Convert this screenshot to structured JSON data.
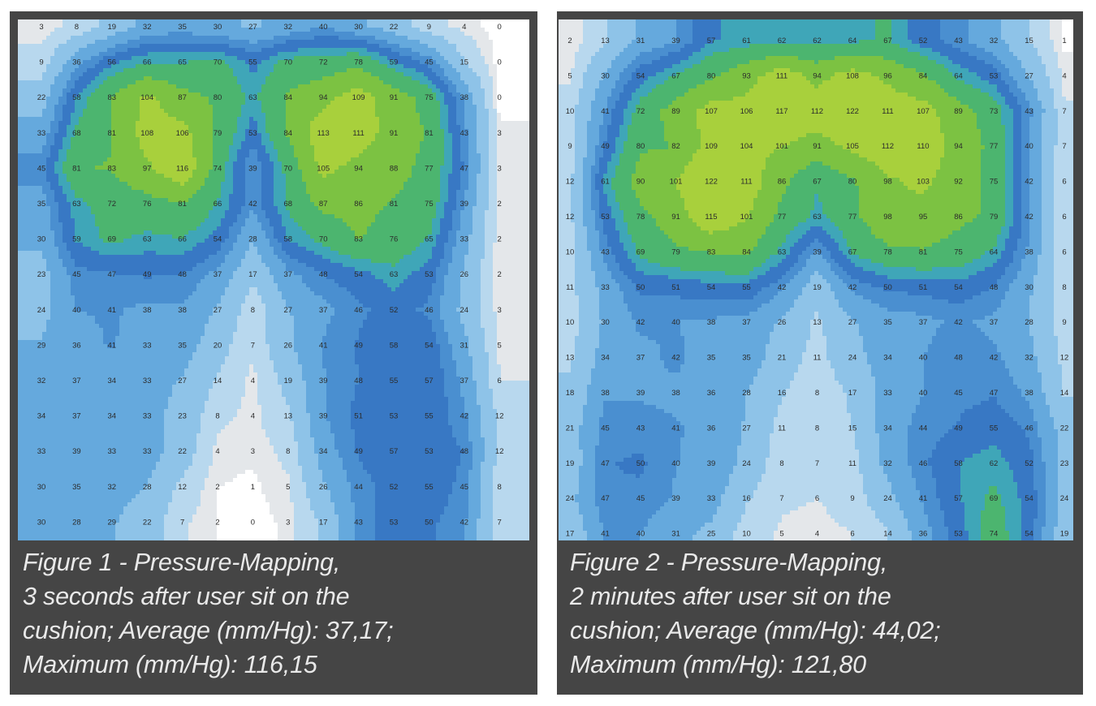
{
  "colors": {
    "panel": "#454545",
    "caption_text": "#e9e9e9",
    "levels": [
      "#ffffff",
      "#e4e7ea",
      "#b8d8ee",
      "#8ec3e8",
      "#65a9dd",
      "#4a8fd0",
      "#3878c4",
      "#3fa6b8",
      "#4cb56f",
      "#7cc242",
      "#a8d03c"
    ]
  },
  "figures": [
    {
      "caption_lines": [
        "Figure 1 - Pressure-Mapping,",
        "3 seconds after user sit on the",
        "cushion; Average (mm/Hg): 37,17;",
        "Maximum (mm/Hg): 116,15"
      ]
    },
    {
      "caption_lines": [
        "Figure 2 - Pressure-Mapping,",
        "2 minutes after user sit on the",
        "cushion; Average (mm/Hg): 44,02;",
        "Maximum (mm/Hg): 121,80"
      ]
    }
  ],
  "chart_data": [
    {
      "type": "heatmap",
      "title": "",
      "rows": 15,
      "cols": 14,
      "values": [
        [
          3,
          8,
          19,
          32,
          35,
          30,
          27,
          32,
          40,
          30,
          22,
          9,
          4,
          0
        ],
        [
          9,
          36,
          56,
          66,
          65,
          70,
          55,
          70,
          72,
          78,
          59,
          45,
          15,
          0
        ],
        [
          22,
          58,
          83,
          104,
          87,
          80,
          63,
          84,
          94,
          109,
          91,
          75,
          38,
          0
        ],
        [
          33,
          68,
          81,
          108,
          106,
          79,
          53,
          84,
          113,
          111,
          91,
          81,
          43,
          3
        ],
        [
          45,
          81,
          83,
          97,
          116,
          74,
          39,
          70,
          105,
          94,
          88,
          77,
          47,
          3
        ],
        [
          35,
          63,
          72,
          76,
          81,
          66,
          42,
          68,
          87,
          86,
          81,
          75,
          39,
          2
        ],
        [
          30,
          59,
          69,
          63,
          66,
          54,
          28,
          58,
          70,
          83,
          76,
          65,
          33,
          2
        ],
        [
          23,
          45,
          47,
          49,
          48,
          37,
          17,
          37,
          48,
          54,
          63,
          53,
          26,
          2
        ],
        [
          24,
          40,
          41,
          38,
          38,
          27,
          8,
          27,
          37,
          46,
          52,
          46,
          24,
          3
        ],
        [
          29,
          36,
          41,
          33,
          35,
          20,
          7,
          26,
          41,
          49,
          58,
          54,
          31,
          5
        ],
        [
          32,
          37,
          34,
          33,
          27,
          14,
          4,
          19,
          39,
          48,
          55,
          57,
          37,
          6
        ],
        [
          34,
          37,
          34,
          33,
          23,
          8,
          4,
          13,
          39,
          51,
          53,
          55,
          42,
          12
        ],
        [
          33,
          39,
          33,
          33,
          22,
          4,
          3,
          8,
          34,
          49,
          57,
          53,
          48,
          12
        ],
        [
          30,
          35,
          32,
          28,
          12,
          2,
          1,
          5,
          26,
          44,
          52,
          55,
          45,
          8
        ],
        [
          30,
          28,
          29,
          22,
          7,
          2,
          0,
          3,
          17,
          43,
          53,
          50,
          42,
          7
        ]
      ]
    },
    {
      "type": "heatmap",
      "title": "",
      "rows": 15,
      "cols": 15,
      "values": [
        [
          2,
          13,
          31,
          39,
          57,
          61,
          62,
          62,
          64,
          67,
          52,
          43,
          32,
          15,
          1
        ],
        [
          5,
          30,
          54,
          67,
          80,
          93,
          111,
          94,
          108,
          96,
          84,
          64,
          53,
          27,
          4
        ],
        [
          10,
          41,
          72,
          89,
          107,
          106,
          117,
          112,
          122,
          111,
          107,
          89,
          73,
          43,
          7
        ],
        [
          9,
          49,
          80,
          82,
          109,
          104,
          101,
          91,
          105,
          112,
          110,
          94,
          77,
          40,
          7
        ],
        [
          12,
          61,
          90,
          101,
          122,
          111,
          86,
          67,
          80,
          98,
          103,
          92,
          75,
          42,
          6
        ],
        [
          12,
          53,
          78,
          91,
          115,
          101,
          77,
          63,
          77,
          98,
          95,
          86,
          79,
          42,
          6
        ],
        [
          10,
          43,
          69,
          79,
          83,
          84,
          63,
          39,
          67,
          78,
          81,
          75,
          64,
          38,
          6
        ],
        [
          11,
          33,
          50,
          51,
          54,
          55,
          42,
          19,
          42,
          50,
          51,
          54,
          48,
          30,
          8
        ],
        [
          10,
          30,
          42,
          40,
          38,
          37,
          26,
          13,
          27,
          35,
          37,
          42,
          37,
          28,
          9
        ],
        [
          13,
          34,
          37,
          42,
          35,
          35,
          21,
          11,
          24,
          34,
          40,
          48,
          42,
          32,
          12
        ],
        [
          18,
          38,
          39,
          38,
          36,
          28,
          16,
          8,
          17,
          33,
          40,
          45,
          47,
          38,
          14
        ],
        [
          21,
          45,
          43,
          41,
          36,
          27,
          11,
          8,
          15,
          34,
          44,
          49,
          55,
          46,
          22
        ],
        [
          19,
          47,
          50,
          40,
          39,
          24,
          8,
          7,
          11,
          32,
          46,
          58,
          62,
          52,
          23
        ],
        [
          24,
          47,
          45,
          39,
          33,
          16,
          7,
          6,
          9,
          24,
          41,
          57,
          69,
          54,
          24
        ],
        [
          17,
          41,
          40,
          31,
          25,
          10,
          5,
          4,
          6,
          14,
          36,
          53,
          74,
          54,
          19
        ]
      ]
    }
  ]
}
